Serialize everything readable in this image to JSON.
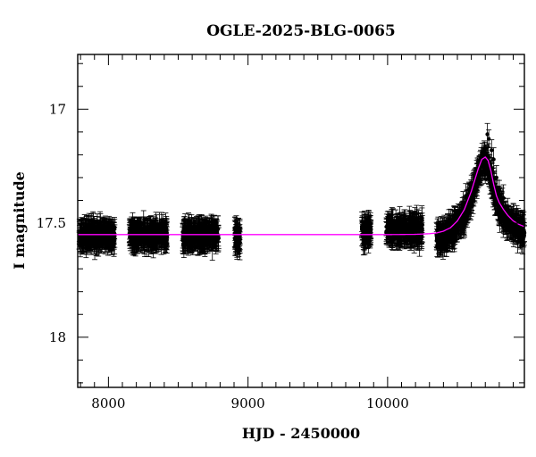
{
  "chart_data": {
    "type": "scatter",
    "title": "OGLE-2025-BLG-0065",
    "xlabel": "HJD - 2450000",
    "ylabel": "I magnitude",
    "xlim": [
      7780,
      10980
    ],
    "ylim": [
      18.22,
      16.76
    ],
    "y_inverted": true,
    "grid": false,
    "legend": "none",
    "x_ticks": [
      8000,
      9000,
      10000
    ],
    "x_tick_labels": [
      "8000",
      "9000",
      "10000"
    ],
    "y_ticks": [
      17,
      17.5,
      18
    ],
    "y_tick_labels": [
      "17",
      "17.5",
      "18"
    ],
    "colors": {
      "data": "#000000",
      "model": "#ff00ff"
    },
    "baseline_mag": 17.55,
    "observing_seasons": [
      {
        "start": 7790,
        "end": 8045,
        "mean_mag": 17.55
      },
      {
        "start": 8150,
        "end": 8420,
        "mean_mag": 17.55
      },
      {
        "start": 8530,
        "end": 8790,
        "mean_mag": 17.55
      },
      {
        "start": 8905,
        "end": 8945,
        "mean_mag": 17.56
      },
      {
        "start": 9815,
        "end": 9880,
        "mean_mag": 17.54
      },
      {
        "start": 9990,
        "end": 10250,
        "mean_mag": 17.53
      },
      {
        "start": 10350,
        "end": 10980,
        "mean_mag": null
      }
    ],
    "series": [
      {
        "kind": "model",
        "x": [
          7780,
          8500,
          9000,
          9500,
          10000,
          10200,
          10300,
          10350,
          10400,
          10450,
          10500,
          10550,
          10600,
          10625,
          10650,
          10675,
          10700,
          10720,
          10740,
          10760,
          10780,
          10800,
          10830,
          10860,
          10900,
          10940,
          10980
        ],
        "y": [
          17.55,
          17.55,
          17.55,
          17.55,
          17.55,
          17.549,
          17.546,
          17.543,
          17.535,
          17.52,
          17.49,
          17.44,
          17.36,
          17.31,
          17.26,
          17.22,
          17.21,
          17.225,
          17.27,
          17.33,
          17.38,
          17.41,
          17.44,
          17.465,
          17.49,
          17.505,
          17.515
        ]
      },
      {
        "kind": "data",
        "description_points": [
          {
            "x": 10715,
            "y": 17.11
          },
          {
            "x": 10725,
            "y": 17.13
          },
          {
            "x": 10745,
            "y": 17.18
          },
          {
            "x": 10760,
            "y": 17.22
          },
          {
            "x": 10780,
            "y": 17.3
          },
          {
            "x": 10800,
            "y": 17.35
          },
          {
            "x": 10830,
            "y": 17.39
          },
          {
            "x": 10860,
            "y": 17.43
          },
          {
            "x": 10900,
            "y": 17.46
          },
          {
            "x": 10940,
            "y": 17.49
          },
          {
            "x": 10560,
            "y": 17.38
          },
          {
            "x": 10620,
            "y": 17.33
          },
          {
            "x": 10480,
            "y": 17.48
          },
          {
            "x": 10520,
            "y": 17.5
          }
        ]
      }
    ]
  }
}
